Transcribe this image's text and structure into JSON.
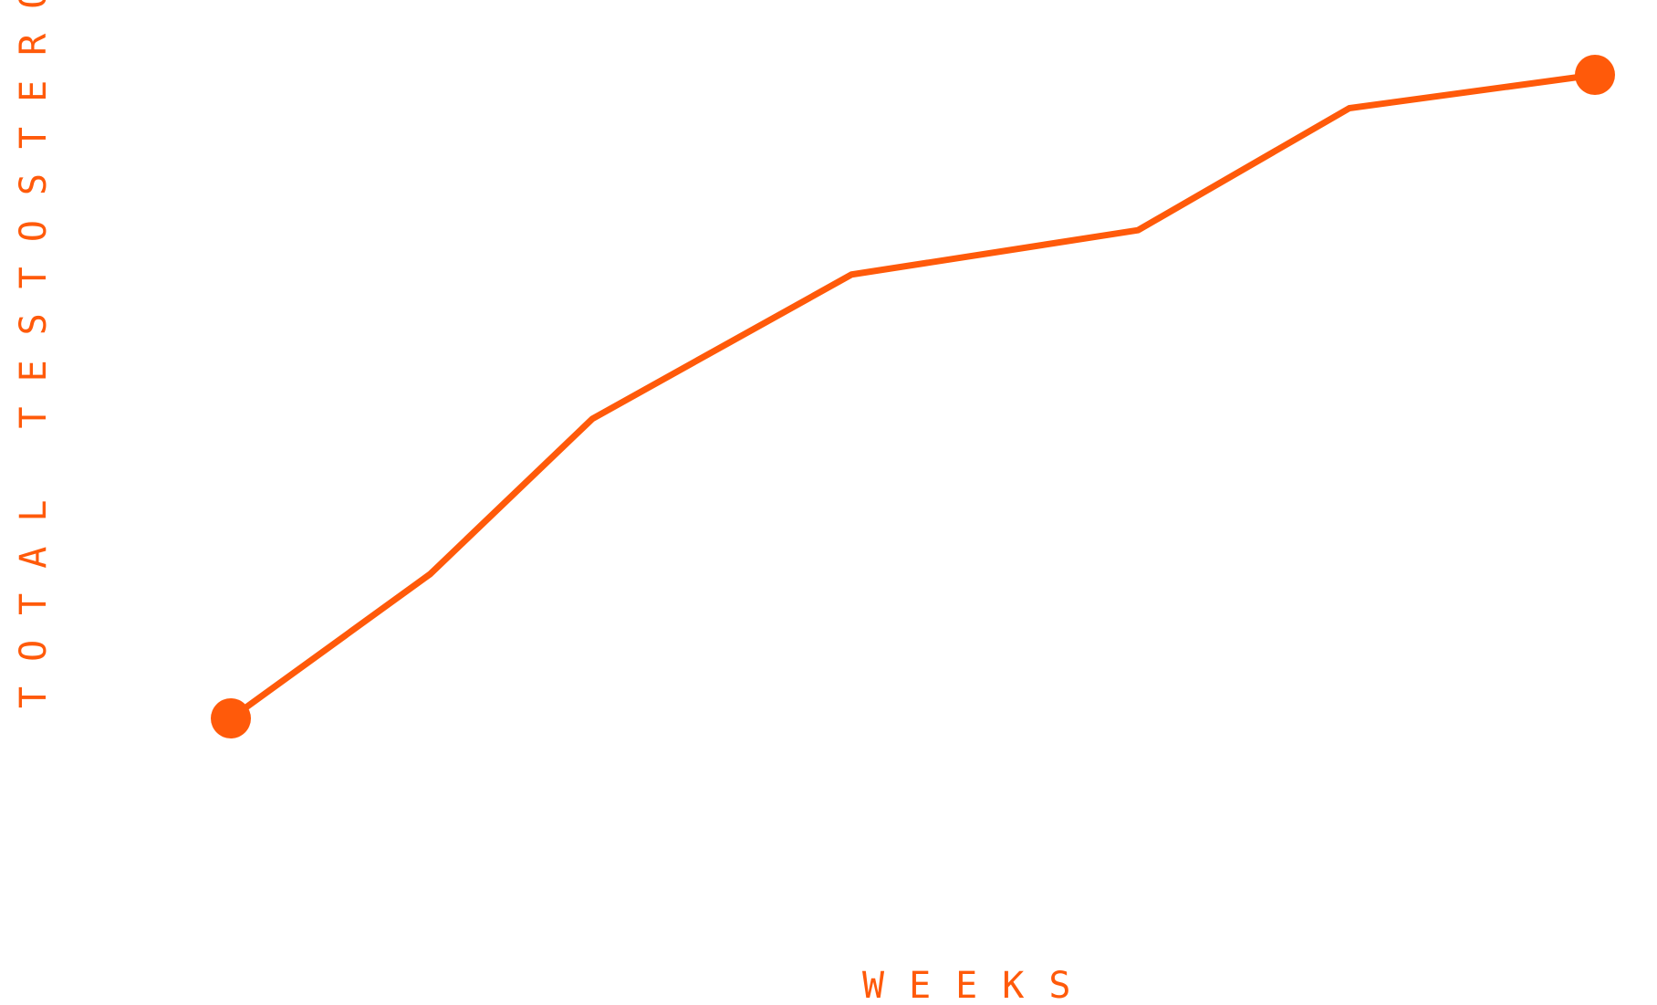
{
  "colors": {
    "line": "#ff5a0a",
    "background": "#ffffff"
  },
  "chart_data": {
    "type": "line",
    "xlabel": "WEEKS",
    "ylabel": "TOTAL TESTOSTERONE",
    "grid": false,
    "legend": "none",
    "x": [
      0,
      1,
      2,
      3,
      4,
      5,
      6
    ],
    "series": [
      {
        "values": [
          0,
          13,
          27,
          40,
          44,
          55,
          58
        ],
        "endpoint_markers": true
      }
    ],
    "xlim": [
      0,
      6
    ],
    "ylim": [
      0,
      58
    ]
  }
}
